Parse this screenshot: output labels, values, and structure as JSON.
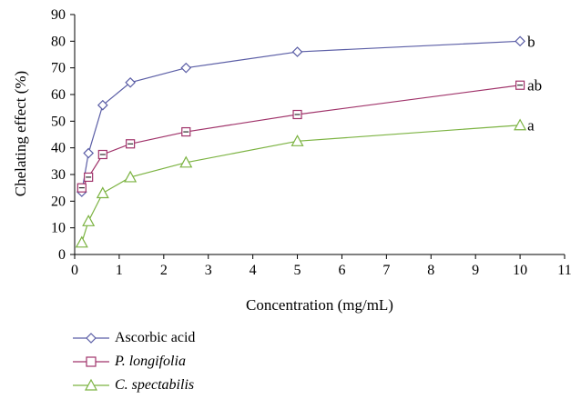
{
  "chart_data": {
    "type": "line",
    "xlabel": "Concentration  (mg/mL)",
    "ylabel": "Chelating effect (%)",
    "xlim": [
      0,
      11
    ],
    "ylim": [
      0,
      90
    ],
    "xticks": [
      0,
      1,
      2,
      3,
      4,
      5,
      6,
      7,
      8,
      9,
      10,
      11
    ],
    "yticks": [
      0,
      10,
      20,
      30,
      40,
      50,
      60,
      70,
      80,
      90
    ],
    "grid": false,
    "legend_position": "bottom-left",
    "series": [
      {
        "name": "Ascorbic acid",
        "color": "#5b5ea6",
        "marker": "diamond",
        "italic": false,
        "x": [
          0.16,
          0.31,
          0.63,
          1.25,
          2.5,
          5,
          10
        ],
        "y": [
          23.5,
          38,
          56,
          64.5,
          70,
          76,
          80
        ],
        "annotation": "b"
      },
      {
        "name": "P. longifolia",
        "color": "#a0336a",
        "marker": "square",
        "italic": true,
        "x": [
          0.16,
          0.31,
          0.63,
          1.25,
          2.5,
          5,
          10
        ],
        "y": [
          25,
          29,
          37.5,
          41.5,
          46,
          52.5,
          63.5
        ],
        "annotation": "ab"
      },
      {
        "name": "C. spectabilis",
        "color": "#7cb342",
        "marker": "triangle",
        "italic": true,
        "x": [
          0.16,
          0.31,
          0.63,
          1.25,
          2.5,
          5,
          10
        ],
        "y": [
          4.5,
          12.5,
          23,
          29,
          34.5,
          42.5,
          48.5
        ],
        "annotation": "a"
      }
    ]
  },
  "legend": [
    {
      "label": "Ascorbic acid"
    },
    {
      "label": "P. longifolia"
    },
    {
      "label": "C. spectabilis"
    }
  ]
}
